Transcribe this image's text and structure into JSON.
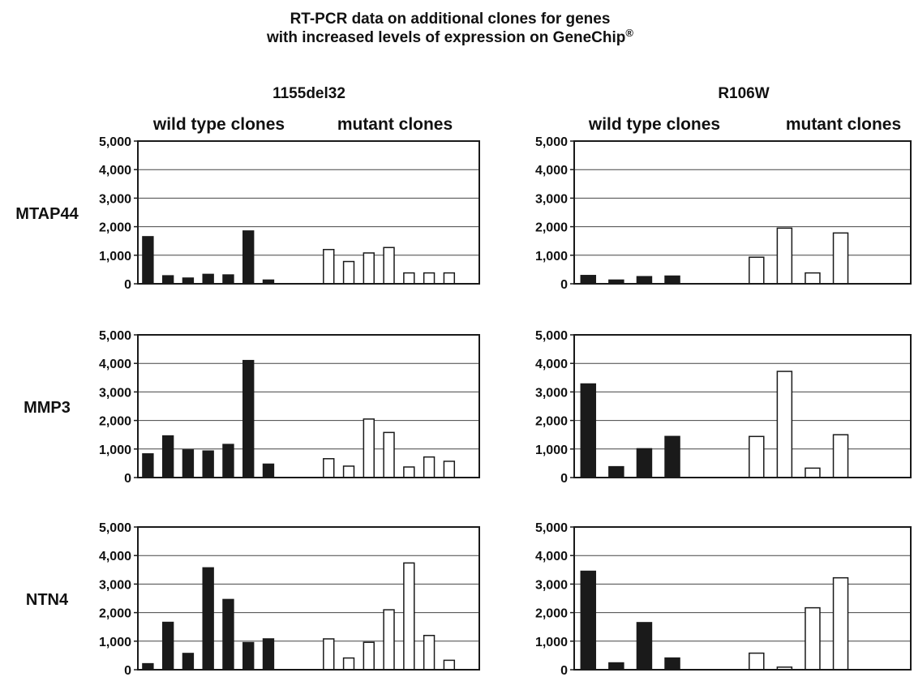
{
  "title": {
    "line1": "RT-PCR data on additional clones for genes",
    "line2": "with increased levels of expression on GeneChip",
    "mark": "®"
  },
  "columns": [
    {
      "title": "1155del32",
      "group_labels": [
        "wild type clones",
        "mutant clones"
      ]
    },
    {
      "title": "R106W",
      "group_labels": [
        "wild type clones",
        "mutant clones"
      ]
    }
  ],
  "rows": [
    "MTAP44",
    "MMP3",
    "NTN4"
  ],
  "colors": {
    "wild_type": "#1a1a1a",
    "mutant": "#ffffff",
    "outline": "#1a1a1a",
    "grid": "#444444"
  },
  "chart_data": [
    {
      "type": "bar",
      "gene": "MTAP44",
      "mutation": "1155del32",
      "ylim": [
        0,
        5000
      ],
      "yticks": [
        "0",
        "1,000",
        "2,000",
        "3,000",
        "4,000",
        "5,000"
      ],
      "series": [
        {
          "name": "wild type clones",
          "values": [
            1650,
            280,
            200,
            330,
            310,
            1850,
            130
          ]
        },
        {
          "name": "mutant clones",
          "values": [
            1200,
            780,
            1080,
            1270,
            380,
            380,
            380
          ]
        }
      ]
    },
    {
      "type": "bar",
      "gene": "MTAP44",
      "mutation": "R106W",
      "ylim": [
        0,
        5000
      ],
      "yticks": [
        "0",
        "1,000",
        "2,000",
        "3,000",
        "4,000",
        "5,000"
      ],
      "series": [
        {
          "name": "wild type clones",
          "values": [
            290,
            130,
            250,
            270
          ]
        },
        {
          "name": "mutant clones",
          "values": [
            930,
            1950,
            380,
            1780
          ]
        }
      ]
    },
    {
      "type": "bar",
      "gene": "MMP3",
      "mutation": "1155del32",
      "ylim": [
        0,
        5000
      ],
      "yticks": [
        "0",
        "1,000",
        "2,000",
        "3,000",
        "4,000",
        "5,000"
      ],
      "series": [
        {
          "name": "wild type clones",
          "values": [
            830,
            1460,
            970,
            930,
            1160,
            4100,
            470
          ]
        },
        {
          "name": "mutant clones",
          "values": [
            660,
            400,
            2050,
            1580,
            370,
            720,
            570
          ]
        }
      ]
    },
    {
      "type": "bar",
      "gene": "MMP3",
      "mutation": "R106W",
      "ylim": [
        0,
        5000
      ],
      "yticks": [
        "0",
        "1,000",
        "2,000",
        "3,000",
        "4,000",
        "5,000"
      ],
      "series": [
        {
          "name": "wild type clones",
          "values": [
            3280,
            380,
            1010,
            1440
          ]
        },
        {
          "name": "mutant clones",
          "values": [
            1440,
            3720,
            330,
            1500
          ]
        }
      ]
    },
    {
      "type": "bar",
      "gene": "NTN4",
      "mutation": "1155del32",
      "ylim": [
        0,
        5000
      ],
      "yticks": [
        "0",
        "1,000",
        "2,000",
        "3,000",
        "4,000",
        "5,000"
      ],
      "series": [
        {
          "name": "wild type clones",
          "values": [
            210,
            1660,
            570,
            3570,
            2460,
            950,
            1080
          ]
        },
        {
          "name": "mutant clones",
          "values": [
            1080,
            410,
            960,
            2100,
            3740,
            1200,
            330
          ]
        }
      ]
    },
    {
      "type": "bar",
      "gene": "NTN4",
      "mutation": "R106W",
      "ylim": [
        0,
        5000
      ],
      "yticks": [
        "0",
        "1,000",
        "2,000",
        "3,000",
        "4,000",
        "5,000"
      ],
      "series": [
        {
          "name": "wild type clones",
          "values": [
            3450,
            240,
            1650,
            410
          ]
        },
        {
          "name": "mutant clones",
          "values": [
            580,
            90,
            2170,
            3220
          ]
        }
      ]
    }
  ]
}
